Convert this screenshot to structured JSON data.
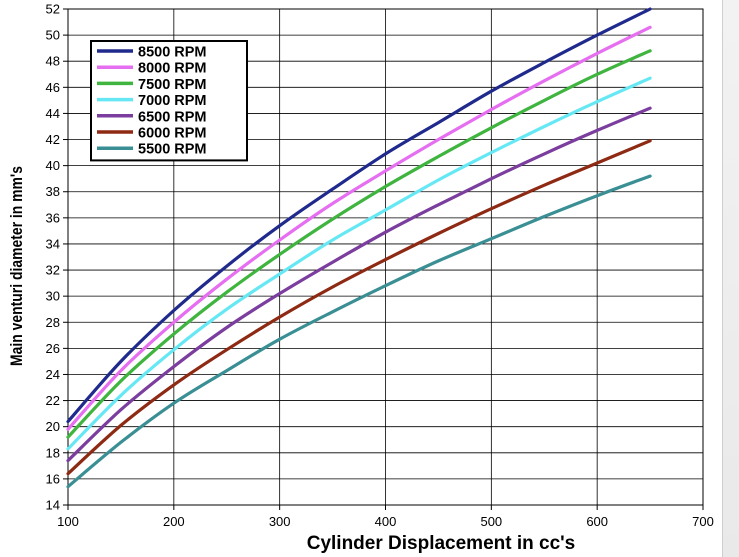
{
  "chart_data": {
    "type": "line",
    "title": "",
    "xlabel": "Cylinder Displacement in cc's",
    "ylabel": "Main venturi diameter in mm's",
    "xlim": [
      100,
      700
    ],
    "ylim": [
      14,
      52
    ],
    "xticks": [
      100,
      200,
      300,
      400,
      500,
      600,
      700
    ],
    "yticks": [
      14,
      16,
      18,
      20,
      22,
      24,
      26,
      28,
      30,
      32,
      34,
      36,
      38,
      40,
      42,
      44,
      46,
      48,
      50,
      52
    ],
    "grid": true,
    "legend_position": "top-left",
    "x": [
      100,
      150,
      200,
      250,
      300,
      350,
      400,
      450,
      500,
      550,
      600,
      650
    ],
    "series": [
      {
        "name": "8500 RPM",
        "color": "#1f2a8c",
        "values": [
          20.4,
          25.0,
          28.9,
          32.3,
          35.4,
          38.2,
          40.9,
          43.3,
          45.7,
          47.9,
          50.0,
          52.0
        ]
      },
      {
        "name": "8000 RPM",
        "color": "#e66ef0",
        "values": [
          19.8,
          24.3,
          28.0,
          31.3,
          34.3,
          37.1,
          39.6,
          42.0,
          44.3,
          46.5,
          48.6,
          50.6
        ]
      },
      {
        "name": "7500 RPM",
        "color": "#3fb43f",
        "values": [
          19.2,
          23.5,
          27.1,
          30.3,
          33.2,
          35.9,
          38.4,
          40.7,
          42.9,
          45.0,
          47.0,
          48.8
        ]
      },
      {
        "name": "7000 RPM",
        "color": "#66e8f4",
        "values": [
          18.3,
          22.4,
          25.9,
          29.0,
          31.7,
          34.3,
          36.6,
          38.9,
          41.0,
          43.0,
          44.9,
          46.7
        ]
      },
      {
        "name": "6500 RPM",
        "color": "#7b3d9e",
        "values": [
          17.4,
          21.3,
          24.6,
          27.6,
          30.2,
          32.6,
          34.9,
          37.0,
          39.0,
          40.9,
          42.7,
          44.4
        ]
      },
      {
        "name": "6000 RPM",
        "color": "#8e2a14",
        "values": [
          16.4,
          20.1,
          23.2,
          25.9,
          28.4,
          30.7,
          32.8,
          34.8,
          36.7,
          38.5,
          40.2,
          41.9
        ]
      },
      {
        "name": "5500 RPM",
        "color": "#3a8f94",
        "values": [
          15.4,
          18.8,
          21.8,
          24.3,
          26.7,
          28.8,
          30.8,
          32.7,
          34.4,
          36.1,
          37.7,
          39.2
        ]
      }
    ]
  }
}
